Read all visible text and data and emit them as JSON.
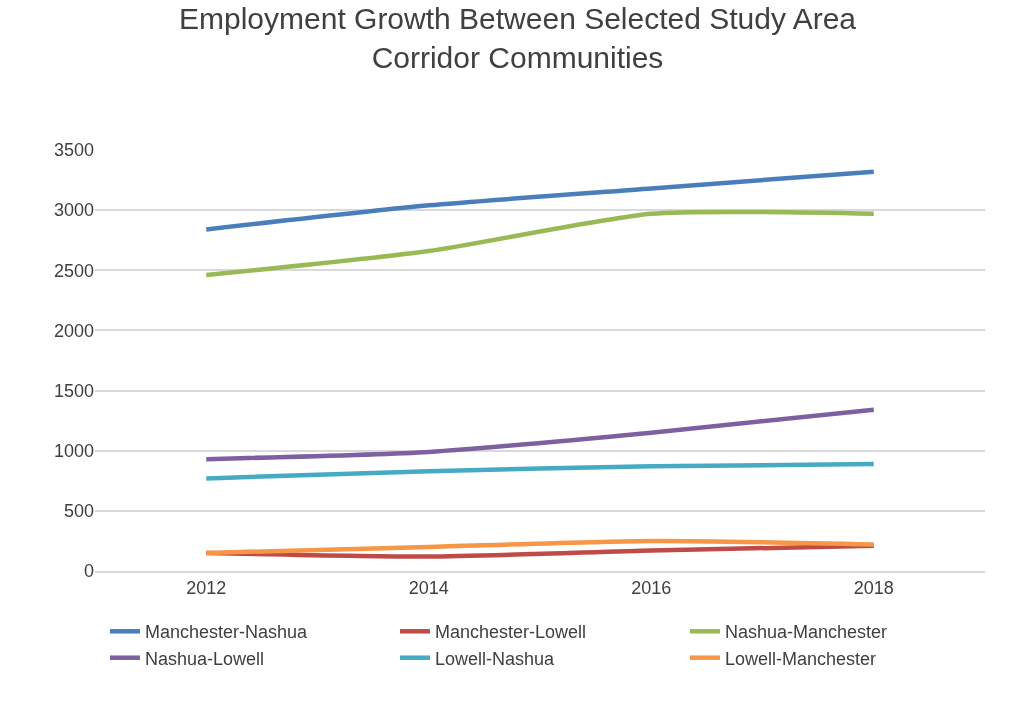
{
  "chart_data": {
    "type": "line",
    "title": "Employment Growth Between Selected Study Area Corridor Communities",
    "categories": [
      "2012",
      "2014",
      "2016",
      "2018"
    ],
    "series": [
      {
        "name": "Manchester-Nashua",
        "color": "#4a7ebb",
        "values": [
          2840,
          3040,
          3180,
          3320
        ]
      },
      {
        "name": "Manchester-Lowell",
        "color": "#be4b48",
        "values": [
          150,
          120,
          170,
          210
        ]
      },
      {
        "name": "Nashua-Manchester",
        "color": "#98b954",
        "values": [
          2460,
          2660,
          2970,
          2970
        ]
      },
      {
        "name": "Nashua-Lowell",
        "color": "#7d60a0",
        "values": [
          930,
          990,
          1150,
          1340
        ]
      },
      {
        "name": "Lowell-Nashua",
        "color": "#46aac5",
        "values": [
          770,
          830,
          870,
          890
        ]
      },
      {
        "name": "Lowell-Manchester",
        "color": "#f79646",
        "values": [
          150,
          200,
          250,
          220
        ]
      }
    ],
    "ylim": [
      0,
      3500
    ],
    "yticks": [
      0,
      500,
      1000,
      1500,
      2000,
      2500,
      3000,
      3500
    ],
    "grid": "y",
    "legend": "bottom",
    "marker": "none",
    "line_style": "solid"
  }
}
